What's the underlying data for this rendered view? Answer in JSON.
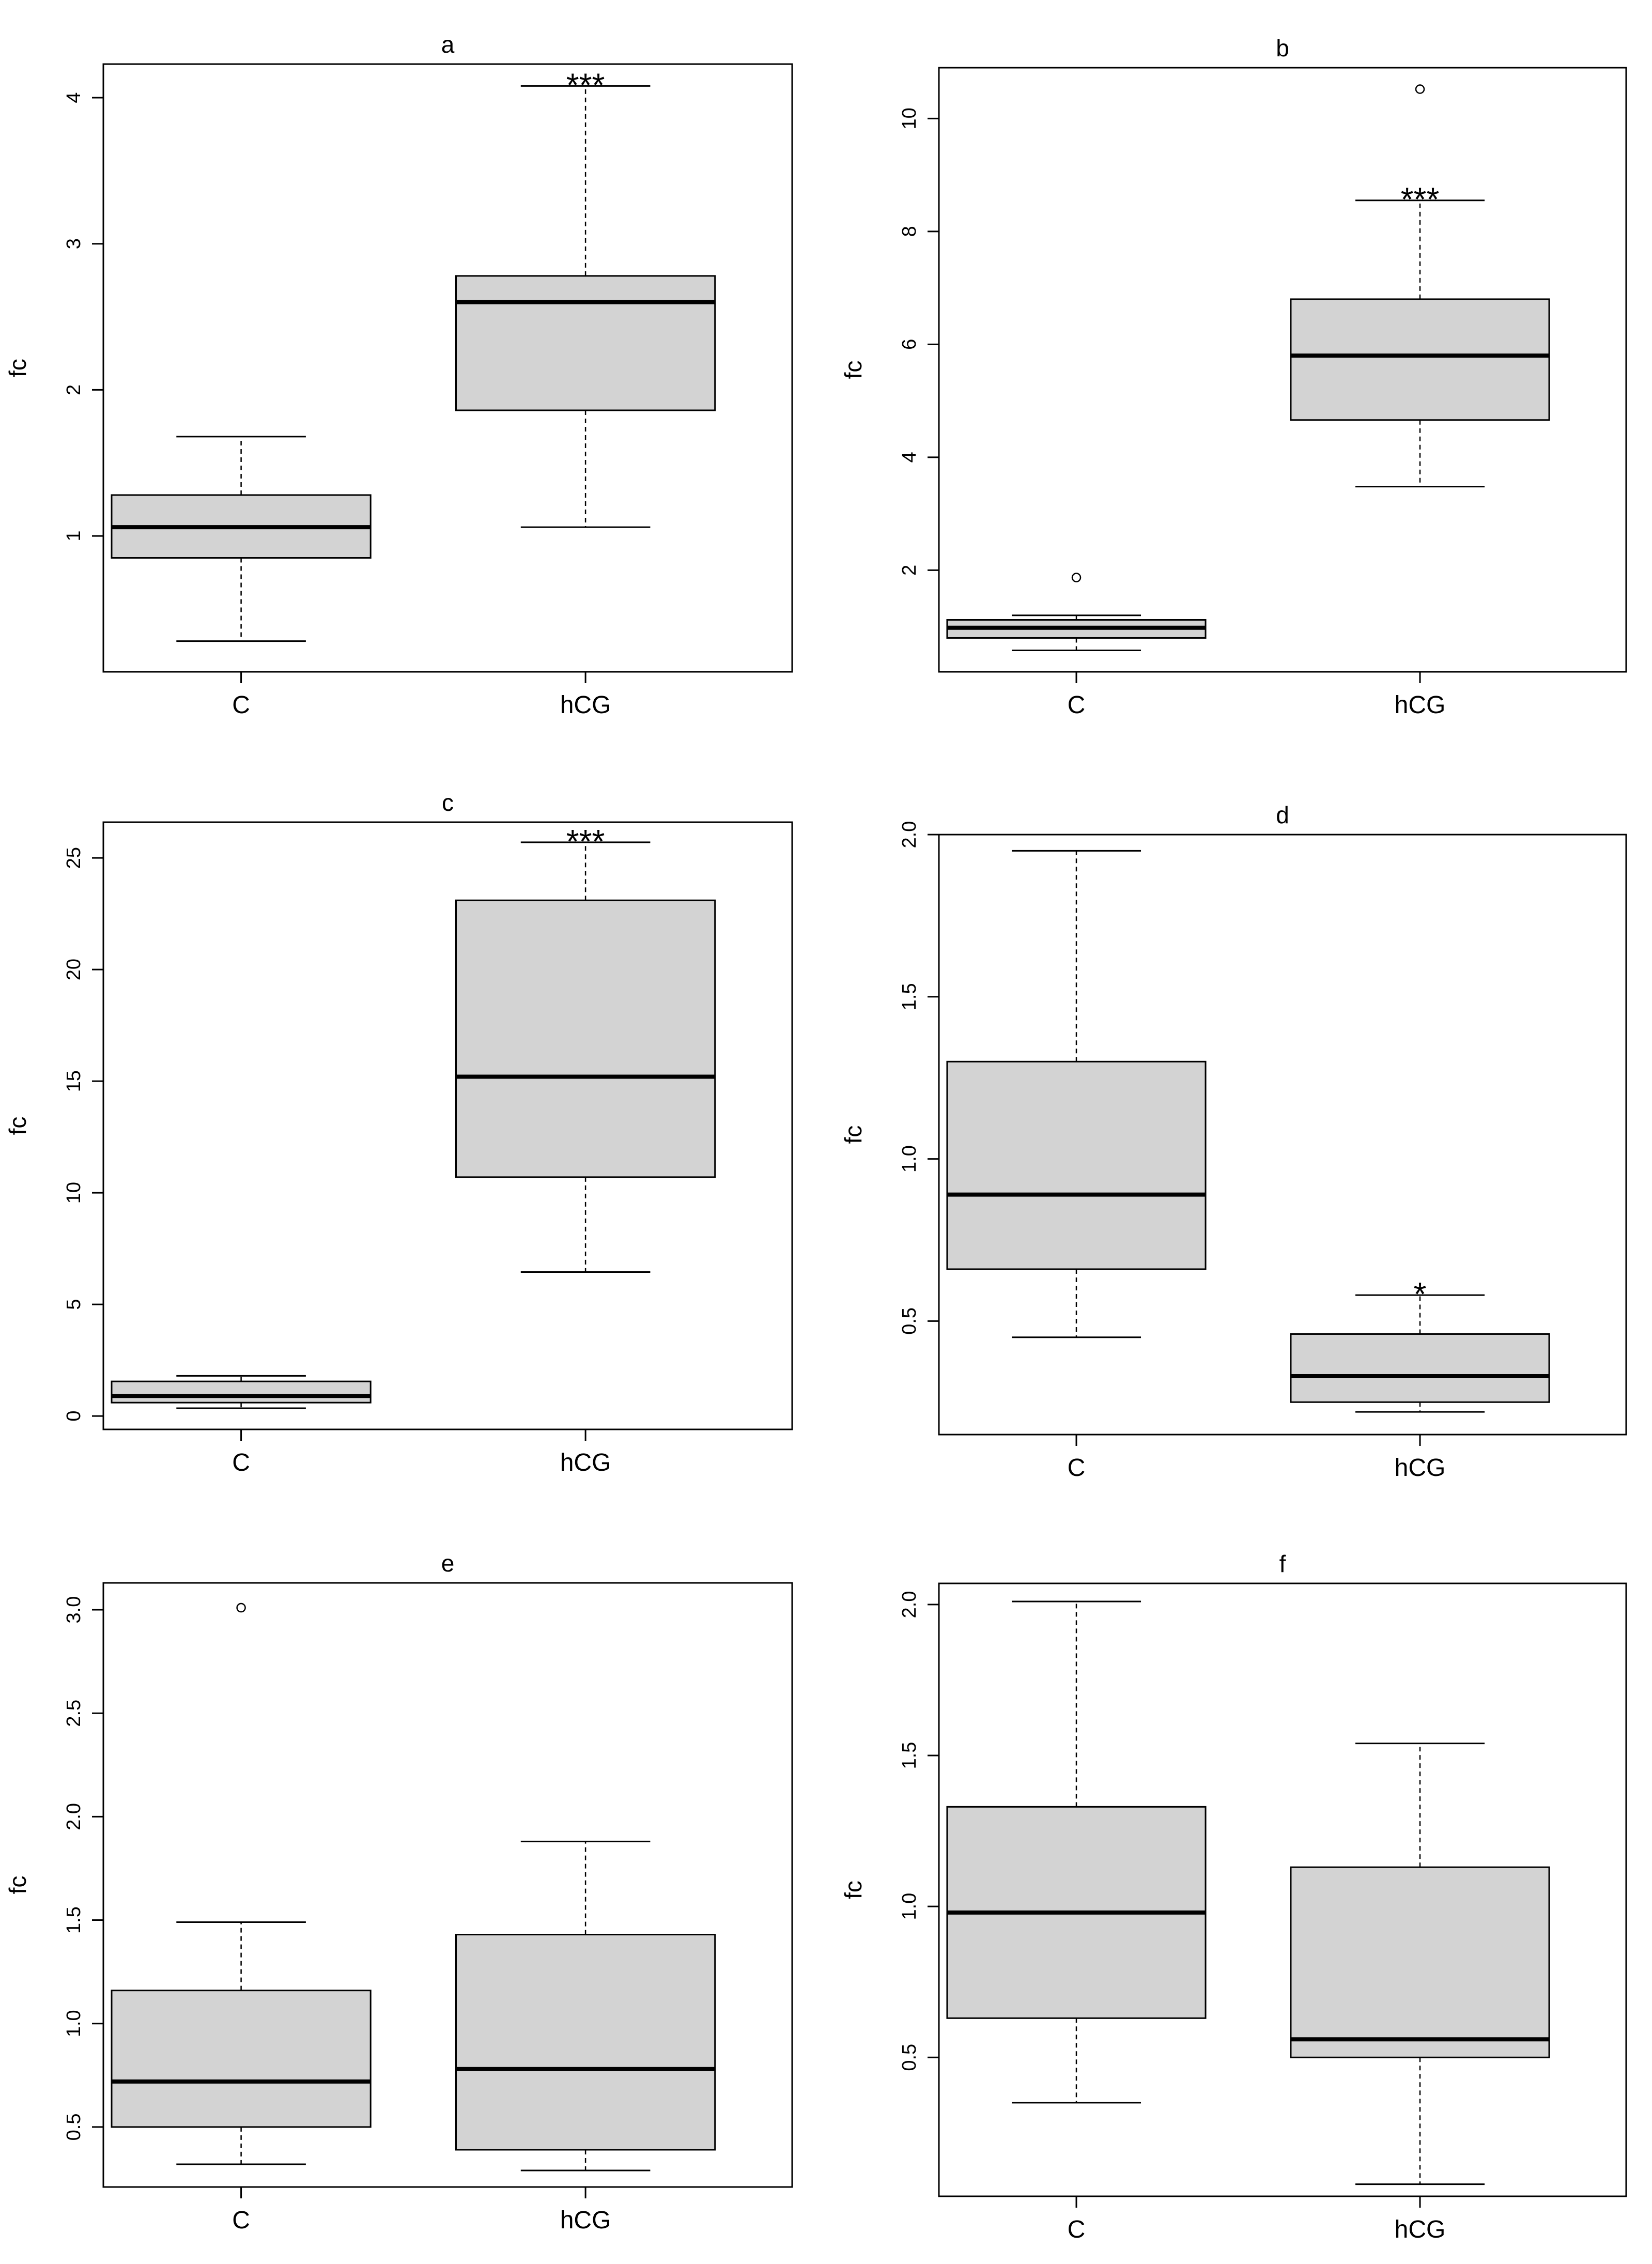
{
  "chart_data": [
    {
      "type": "box",
      "title": "a",
      "ylabel": "fc",
      "categories": [
        "C",
        "hCG"
      ],
      "ylim": [
        0.07,
        4.23
      ],
      "yticks": [
        1,
        2,
        3,
        4
      ],
      "boxes": [
        {
          "category": "C",
          "whisker_low": 0.28,
          "q1": 0.85,
          "median": 1.06,
          "q3": 1.28,
          "whisker_high": 1.68,
          "outliers": []
        },
        {
          "category": "hCG",
          "whisker_low": 1.06,
          "q1": 1.86,
          "median": 2.6,
          "q3": 2.78,
          "whisker_high": 4.08,
          "outliers": []
        }
      ],
      "annotations": [
        {
          "category": "hCG",
          "text": "***"
        }
      ]
    },
    {
      "type": "box",
      "title": "b",
      "ylabel": "fc",
      "categories": [
        "C",
        "hCG"
      ],
      "ylim": [
        0.2,
        10.9
      ],
      "yticks": [
        2,
        4,
        6,
        8,
        10
      ],
      "boxes": [
        {
          "category": "C",
          "whisker_low": 0.58,
          "q1": 0.8,
          "median": 0.98,
          "q3": 1.12,
          "whisker_high": 1.2,
          "outliers": [
            1.87
          ]
        },
        {
          "category": "hCG",
          "whisker_low": 3.48,
          "q1": 4.66,
          "median": 5.8,
          "q3": 6.8,
          "whisker_high": 8.55,
          "outliers": [
            10.52
          ]
        }
      ],
      "annotations": [
        {
          "category": "hCG",
          "text": "***"
        }
      ]
    },
    {
      "type": "box",
      "title": "c",
      "ylabel": "fc",
      "categories": [
        "C",
        "hCG"
      ],
      "ylim": [
        -0.6,
        26.6
      ],
      "yticks": [
        0,
        5,
        10,
        15,
        20,
        25
      ],
      "boxes": [
        {
          "category": "C",
          "whisker_low": 0.35,
          "q1": 0.6,
          "median": 0.9,
          "q3": 1.55,
          "whisker_high": 1.8,
          "outliers": []
        },
        {
          "category": "hCG",
          "whisker_low": 6.45,
          "q1": 10.7,
          "median": 15.2,
          "q3": 23.1,
          "whisker_high": 25.7,
          "outliers": []
        }
      ],
      "annotations": [
        {
          "category": "hCG",
          "text": "***"
        }
      ]
    },
    {
      "type": "box",
      "title": "d",
      "ylabel": "fc",
      "categories": [
        "C",
        "hCG"
      ],
      "ylim": [
        0.15,
        2.0
      ],
      "yticks": [
        0.5,
        1.0,
        1.5,
        2.0
      ],
      "boxes": [
        {
          "category": "C",
          "whisker_low": 0.45,
          "q1": 0.66,
          "median": 0.89,
          "q3": 1.3,
          "whisker_high": 1.95,
          "outliers": []
        },
        {
          "category": "hCG",
          "whisker_low": 0.22,
          "q1": 0.25,
          "median": 0.33,
          "q3": 0.46,
          "whisker_high": 0.58,
          "outliers": []
        }
      ],
      "annotations": [
        {
          "category": "hCG",
          "text": "*"
        }
      ]
    },
    {
      "type": "box",
      "title": "e",
      "ylabel": "fc",
      "categories": [
        "C",
        "hCG"
      ],
      "ylim": [
        0.21,
        3.13
      ],
      "yticks": [
        0.5,
        1.0,
        1.5,
        2.0,
        2.5,
        3.0
      ],
      "boxes": [
        {
          "category": "C",
          "whisker_low": 0.32,
          "q1": 0.5,
          "median": 0.72,
          "q3": 1.16,
          "whisker_high": 1.49,
          "outliers": [
            3.01
          ]
        },
        {
          "category": "hCG",
          "whisker_low": 0.29,
          "q1": 0.39,
          "median": 0.78,
          "q3": 1.43,
          "whisker_high": 1.88,
          "outliers": []
        }
      ],
      "annotations": []
    },
    {
      "type": "box",
      "title": "f",
      "ylabel": "fc",
      "categories": [
        "C",
        "hCG"
      ],
      "ylim": [
        0.04,
        2.07
      ],
      "yticks": [
        0.5,
        1.0,
        1.5,
        2.0
      ],
      "boxes": [
        {
          "category": "C",
          "whisker_low": 0.35,
          "q1": 0.63,
          "median": 0.98,
          "q3": 1.33,
          "whisker_high": 2.01,
          "outliers": []
        },
        {
          "category": "hCG",
          "whisker_low": 0.08,
          "q1": 0.5,
          "median": 0.56,
          "q3": 1.13,
          "whisker_high": 1.54,
          "outliers": []
        }
      ],
      "annotations": []
    }
  ]
}
